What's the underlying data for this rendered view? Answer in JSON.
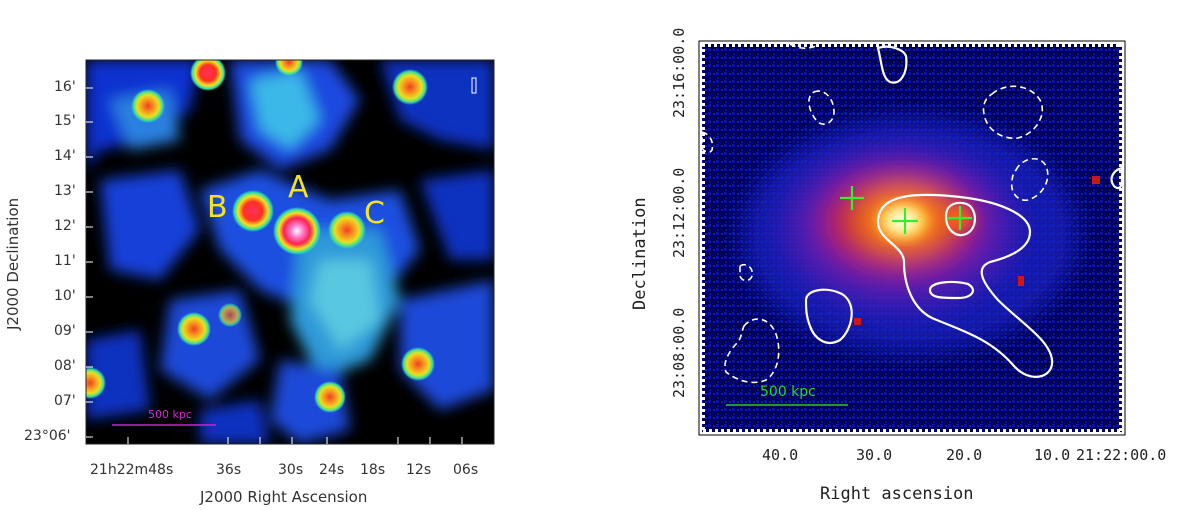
{
  "left_panel": {
    "ra_ticks": [
      "21h22m48s",
      "36s",
      "30s",
      "24s",
      "18s",
      "12s",
      "06s"
    ],
    "dec_ticks": [
      "16'",
      "15'",
      "14'",
      "13'",
      "12'",
      "11'",
      "10'",
      "09'",
      "08'",
      "07'",
      "23°06'"
    ],
    "xlabel": "J2000 Right Ascension",
    "ylabel": "J2000 Declination",
    "source_labels": [
      "A",
      "B",
      "C"
    ],
    "scale_bar": "500 kpc",
    "colors": {
      "scale_bar": "#cc22cc",
      "labels": "#f5e321"
    }
  },
  "right_panel": {
    "ra_ticks": [
      "40.0",
      "30.0",
      "20.0",
      "10.0",
      "21:22:00.0"
    ],
    "dec_ticks": [
      "23:16:00.0",
      "23:12:00.0",
      "23:08:00.0"
    ],
    "xlabel": "Right ascension",
    "ylabel": "Declination",
    "scale_bar": "500 kpc",
    "colors": {
      "scale_bar": "#22cc22",
      "crosses": "#33ee33",
      "contours": "#ffffff"
    }
  }
}
